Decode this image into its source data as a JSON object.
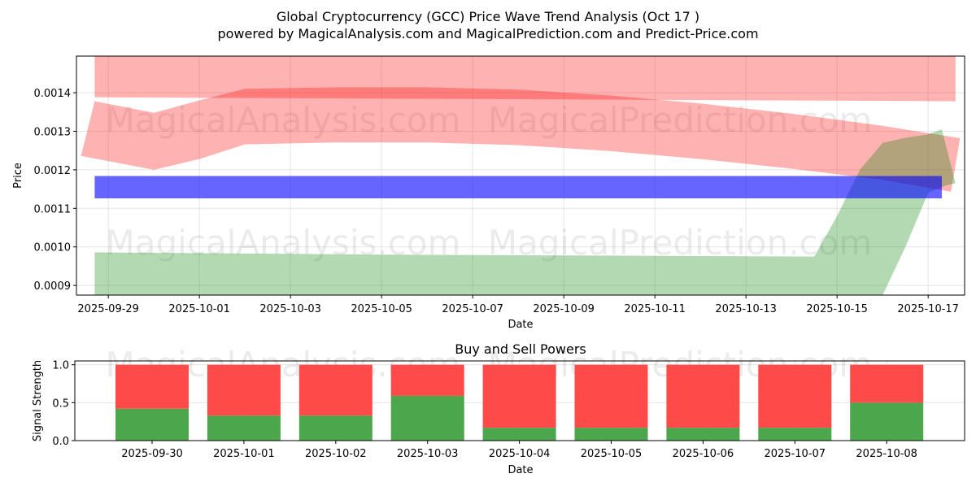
{
  "header": {
    "title": "Global Cryptocurrency (GCC) Price Wave Trend Analysis (Oct 17 )",
    "subtitle": "powered by MagicalAnalysis.com and MagicalPrediction.com and Predict-Price.com"
  },
  "watermarks": [
    "MagicalAnalysis.com",
    "MagicalPrediction.com"
  ],
  "colors": {
    "red_band": "#ff0000",
    "green_band": "#008000",
    "blue_band": "#0000ff",
    "buy": "#4ca64c",
    "sell": "#ff4a4a",
    "grid": "#e5e5e5"
  },
  "chart_data": [
    {
      "type": "area",
      "xlabel": "Date",
      "ylabel": "Price",
      "x_ticks": [
        "2025-09-29",
        "2025-10-01",
        "2025-10-03",
        "2025-10-05",
        "2025-10-07",
        "2025-10-09",
        "2025-10-11",
        "2025-10-13",
        "2025-10-15",
        "2025-10-17"
      ],
      "y_ticks": [
        "0.0009",
        "0.0010",
        "0.0011",
        "0.0012",
        "0.0013",
        "0.0014"
      ],
      "ylim": [
        0.000875,
        0.001495
      ],
      "xlim": [
        "2025-09-28.3",
        "2025-10-17.8"
      ],
      "grid": true,
      "bands": [
        {
          "color": "red",
          "alpha": 0.3,
          "upper": [
            [
              "2025-09-28.7",
              0.001494
            ],
            [
              "2025-10-17.6",
              0.001494
            ]
          ],
          "lower": [
            [
              "2025-09-28.7",
              0.001388
            ],
            [
              "2025-10-17.6",
              0.001378
            ]
          ]
        },
        {
          "color": "red",
          "alpha": 0.3,
          "upper": [
            [
              "2025-09-28.7",
              0.001378
            ],
            [
              "2025-09-30.0",
              0.001348
            ],
            [
              "2025-10-01.0",
              0.00138
            ],
            [
              "2025-10-02.0",
              0.00141
            ],
            [
              "2025-10-04.0",
              0.001414
            ],
            [
              "2025-10-06.0",
              0.001414
            ],
            [
              "2025-10-08.0",
              0.001408
            ],
            [
              "2025-10-10.0",
              0.001393
            ],
            [
              "2025-10-12.0",
              0.001372
            ],
            [
              "2025-10-14.0",
              0.001346
            ],
            [
              "2025-10-16.0",
              0.001314
            ],
            [
              "2025-10-17.7",
              0.001282
            ]
          ],
          "lower": [
            [
              "2025-09-28.4",
              0.001236
            ],
            [
              "2025-09-30.0",
              0.0012
            ],
            [
              "2025-10-01.0",
              0.001228
            ],
            [
              "2025-10-02.0",
              0.001266
            ],
            [
              "2025-10-04.0",
              0.001271
            ],
            [
              "2025-10-06.0",
              0.001271
            ],
            [
              "2025-10-08.0",
              0.001264
            ],
            [
              "2025-10-10.0",
              0.001249
            ],
            [
              "2025-10-12.0",
              0.001228
            ],
            [
              "2025-10-14.0",
              0.001203
            ],
            [
              "2025-10-16.0",
              0.001174
            ],
            [
              "2025-10-17.5",
              0.001143
            ]
          ]
        },
        {
          "color": "green",
          "alpha": 0.3,
          "upper": [
            [
              "2025-09-28.7",
              0.000986
            ],
            [
              "2025-10-05.0",
              0.00098
            ],
            [
              "2025-10-14.5",
              0.000975
            ],
            [
              "2025-10-15.0",
              0.00108
            ],
            [
              "2025-10-15.5",
              0.0012
            ],
            [
              "2025-10-16.0",
              0.00127
            ],
            [
              "2025-10-16.5",
              0.001283
            ],
            [
              "2025-10-17.0",
              0.001292
            ],
            [
              "2025-10-17.3",
              0.001305
            ]
          ],
          "lower": [
            [
              "2025-09-28.7",
              0.000875
            ],
            [
              "2025-10-16.0",
              0.000875
            ],
            [
              "2025-10-16.5",
              0.001
            ],
            [
              "2025-10-17.0",
              0.00114
            ],
            [
              "2025-10-17.4",
              0.00116
            ],
            [
              "2025-10-17.6",
              0.001165
            ]
          ]
        },
        {
          "color": "blue",
          "alpha": 0.6,
          "upper": [
            [
              "2025-09-28.7",
              0.001184
            ],
            [
              "2025-10-17.3",
              0.001184
            ]
          ],
          "lower": [
            [
              "2025-09-28.7",
              0.001126
            ],
            [
              "2025-10-17.3",
              0.001126
            ]
          ]
        }
      ]
    },
    {
      "type": "bar",
      "title": "Buy and Sell Powers",
      "xlabel": "Date",
      "ylabel": "Signal Strength",
      "categories": [
        "2025-09-30",
        "2025-10-01",
        "2025-10-02",
        "2025-10-03",
        "2025-10-04",
        "2025-10-05",
        "2025-10-06",
        "2025-10-07",
        "2025-10-08"
      ],
      "y_ticks": [
        "0.0",
        "0.5",
        "1.0"
      ],
      "ylim": [
        0,
        1.05
      ],
      "grid": true,
      "series": [
        {
          "values": [
            0.42,
            0.33,
            0.33,
            0.59,
            0.17,
            0.17,
            0.17,
            0.17,
            0.5
          ]
        },
        {
          "values": [
            0.58,
            0.67,
            0.67,
            0.41,
            0.83,
            0.83,
            0.83,
            0.83,
            0.5
          ]
        }
      ]
    }
  ]
}
